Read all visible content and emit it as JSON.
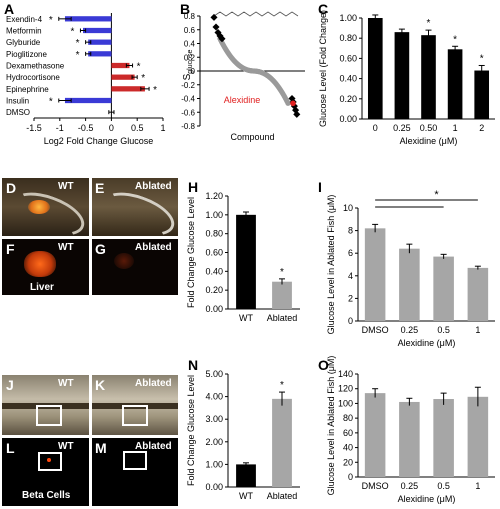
{
  "panel_letters": {
    "A": "A",
    "B": "B",
    "C": "C",
    "D": "D",
    "E": "E",
    "F": "F",
    "G": "G",
    "H": "H",
    "I": "I",
    "J": "J",
    "K": "K",
    "L": "L",
    "M": "M",
    "N": "N",
    "O": "O"
  },
  "photo_labels": {
    "D": "WT",
    "E": "Ablated",
    "F_top": "WT",
    "F_bottom": "Liver",
    "G": "Ablated",
    "J": "WT",
    "K": "Ablated",
    "L_top": "WT",
    "L_bottom": "Beta Cells",
    "M": "Ablated"
  },
  "significance_marker": "*",
  "chart_data": [
    {
      "panel": "A",
      "type": "bar",
      "orientation": "horizontal",
      "categories": [
        "Exendin-4",
        "Metformin",
        "Glyburide",
        "Pioglitizone",
        "Dexamethasone",
        "Hydrocortisone",
        "Epinephrine",
        "Insulin",
        "DMSO"
      ],
      "values": [
        -0.9,
        -0.55,
        -0.45,
        -0.45,
        0.35,
        0.45,
        0.65,
        -0.9,
        0.0
      ],
      "errors": [
        0.12,
        0.05,
        0.05,
        0.05,
        0.06,
        0.05,
        0.08,
        0.12,
        0.05
      ],
      "colors": [
        "#3a3ad6",
        "#3a3ad6",
        "#3a3ad6",
        "#3a3ad6",
        "#cc2a2a",
        "#cc2a2a",
        "#cc2a2a",
        "#3a3ad6",
        "#888888"
      ],
      "significant": [
        true,
        true,
        true,
        true,
        true,
        true,
        true,
        true,
        false
      ],
      "xlabel": "Log2 Fold Change Glucose",
      "xlim": [
        -1.5,
        1.0
      ],
      "xticks": [
        "-1.5",
        "-1",
        "-0.5",
        "0",
        "0.5",
        "1"
      ]
    },
    {
      "panel": "B",
      "type": "scatter",
      "ylabel": "S",
      "ylabel_sub": "glucose",
      "xlabel": "Compound",
      "ylim": [
        -0.8,
        0.8
      ],
      "yticks": [
        "0.8",
        "0.6",
        "0.4",
        "0.2",
        "0",
        "-0.2",
        "-0.4",
        "-0.6",
        "-0.8"
      ],
      "highlight_label": "Alexidine",
      "high_outliers": [
        0.78,
        0.64,
        0.56,
        0.51,
        0.47
      ],
      "low_outliers": [
        -0.4,
        -0.45,
        -0.51,
        -0.57,
        -0.63
      ]
    },
    {
      "panel": "C",
      "type": "bar",
      "categories": [
        "0",
        "0.25",
        "0.50",
        "1",
        "2"
      ],
      "values": [
        1.0,
        0.86,
        0.83,
        0.69,
        0.48
      ],
      "errors": [
        0.03,
        0.03,
        0.05,
        0.03,
        0.05
      ],
      "significant": [
        false,
        false,
        true,
        true,
        true
      ],
      "ylabel": "Glucose Level (Fold Change)",
      "xlabel": "Alexidine (μM)",
      "ylim": [
        0,
        1.0
      ],
      "yticks": [
        "0.00",
        "0.20",
        "0.40",
        "0.60",
        "0.80",
        "1.00"
      ]
    },
    {
      "panel": "H",
      "type": "bar",
      "categories": [
        "WT",
        "Ablated"
      ],
      "values": [
        1.0,
        0.29
      ],
      "errors": [
        0.03,
        0.03
      ],
      "colors": [
        "#000000",
        "#a6a6a6"
      ],
      "significant": [
        false,
        true
      ],
      "ylabel": "Fold Change Glucose Level",
      "ylim": [
        0,
        1.2
      ],
      "yticks": [
        "0.00",
        "0.20",
        "0.40",
        "0.60",
        "0.80",
        "1.00",
        "1.20"
      ]
    },
    {
      "panel": "I",
      "type": "bar",
      "categories": [
        "DMSO",
        "0.25",
        "0.5",
        "1"
      ],
      "values": [
        8.2,
        6.4,
        5.7,
        4.7
      ],
      "errors": [
        0.35,
        0.4,
        0.2,
        0.15
      ],
      "ylabel": "Glucose Level in Ablated Fish (μM)",
      "xlabel": "Alexidine (μM)",
      "ylim": [
        0,
        10
      ],
      "yticks": [
        "0",
        "2",
        "4",
        "6",
        "8",
        "10"
      ],
      "bracket_from": 0,
      "bracket_to": [
        2,
        3
      ]
    },
    {
      "panel": "N",
      "type": "bar",
      "categories": [
        "WT",
        "Ablated"
      ],
      "values": [
        1.0,
        3.9
      ],
      "errors": [
        0.07,
        0.3
      ],
      "colors": [
        "#000000",
        "#a6a6a6"
      ],
      "significant": [
        false,
        true
      ],
      "ylabel": "Fold Change Glucose Level",
      "ylim": [
        0,
        5.0
      ],
      "yticks": [
        "0.00",
        "1.00",
        "2.00",
        "3.00",
        "4.00",
        "5.00"
      ]
    },
    {
      "panel": "O",
      "type": "bar",
      "categories": [
        "DMSO",
        "0.25",
        "0.5",
        "1"
      ],
      "values": [
        114,
        102,
        106,
        109
      ],
      "errors": [
        6,
        5,
        8,
        13
      ],
      "ylabel": "Glucose Level in Ablated Fish (μM)",
      "xlabel": "Alexidine (μM)",
      "ylim": [
        0,
        140
      ],
      "yticks": [
        "0",
        "20",
        "40",
        "60",
        "80",
        "100",
        "120",
        "140"
      ]
    }
  ]
}
